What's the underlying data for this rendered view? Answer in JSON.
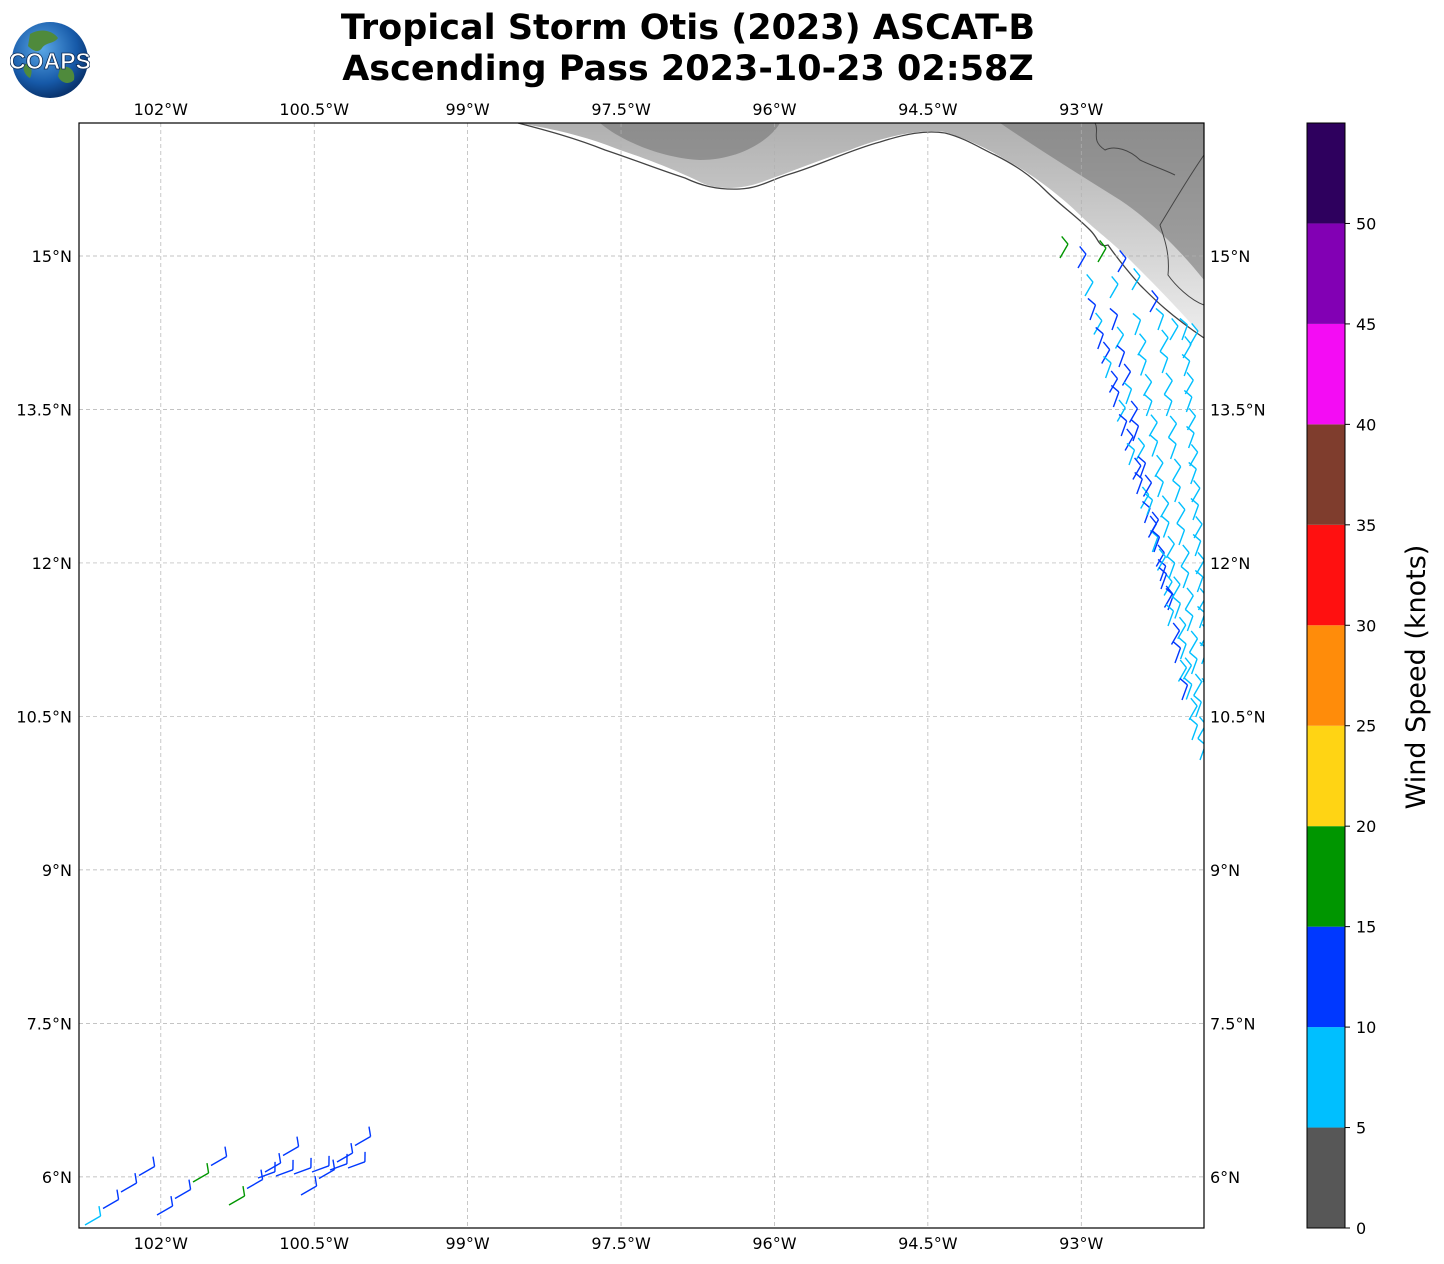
{
  "header": {
    "title_line1": "Tropical Storm Otis (2023) ASCAT-B",
    "title_line2": "Ascending Pass 2023-10-23 02:58Z",
    "logo_text": "COAPS",
    "logo_icon": "globe-logo-icon"
  },
  "map": {
    "lon_range": [
      -102.8,
      -91.8
    ],
    "lat_range": [
      5.5,
      16.3
    ],
    "grid": true,
    "lon_ticks": [
      {
        "value": -102.0,
        "label": "102°W"
      },
      {
        "value": -100.5,
        "label": "100.5°W"
      },
      {
        "value": -99.0,
        "label": "99°W"
      },
      {
        "value": -97.5,
        "label": "97.5°W"
      },
      {
        "value": -96.0,
        "label": "96°W"
      },
      {
        "value": -94.5,
        "label": "94.5°W"
      },
      {
        "value": -93.0,
        "label": "93°W"
      }
    ],
    "lat_ticks": [
      {
        "value": 15.0,
        "label": "15°N"
      },
      {
        "value": 13.5,
        "label": "13.5°N"
      },
      {
        "value": 12.0,
        "label": "12°N"
      },
      {
        "value": 10.5,
        "label": "10.5°N"
      },
      {
        "value": 9.0,
        "label": "9°N"
      },
      {
        "value": 7.5,
        "label": "7.5°N"
      },
      {
        "value": 6.0,
        "label": "6°N"
      }
    ],
    "land_color": "#bdbdbd",
    "coast_color": "#444444"
  },
  "colorbar": {
    "title": "Wind Speed (knots)",
    "ticks": [
      "0",
      "5",
      "10",
      "15",
      "20",
      "25",
      "30",
      "35",
      "40",
      "45",
      "50"
    ],
    "bins": [
      {
        "min": 0,
        "max": 5,
        "color": "#575757"
      },
      {
        "min": 5,
        "max": 10,
        "color": "#00bfff"
      },
      {
        "min": 10,
        "max": 15,
        "color": "#0038ff"
      },
      {
        "min": 15,
        "max": 20,
        "color": "#009600"
      },
      {
        "min": 20,
        "max": 25,
        "color": "#ffd414"
      },
      {
        "min": 25,
        "max": 30,
        "color": "#ff8c0a"
      },
      {
        "min": 30,
        "max": 35,
        "color": "#ff1010"
      },
      {
        "min": 35,
        "max": 40,
        "color": "#7f3d2d"
      },
      {
        "min": 40,
        "max": 45,
        "color": "#f40cf4"
      },
      {
        "min": 45,
        "max": 50,
        "color": "#8200b4"
      },
      {
        "min": 50,
        "max": 55,
        "color": "#2e005e"
      }
    ]
  }
}
